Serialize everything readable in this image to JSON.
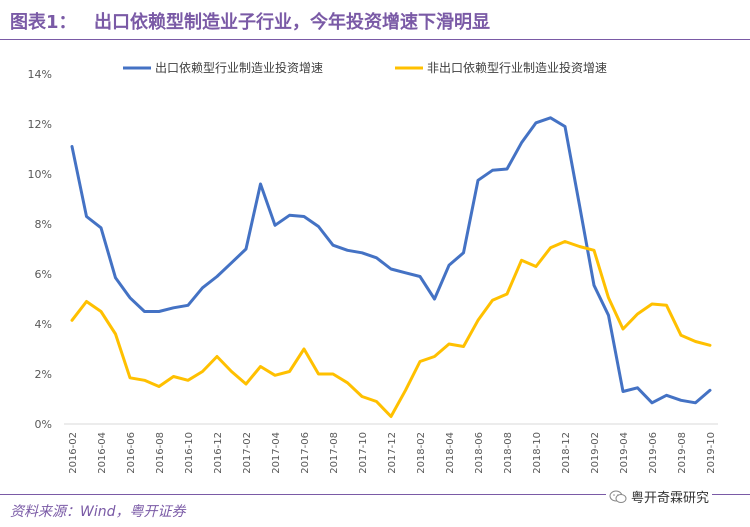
{
  "header": {
    "label": "图表1：",
    "title": "出口依赖型制造业子行业，今年投资增速下滑明显"
  },
  "footer": {
    "source": "资料来源：Wind，粤开证券",
    "brand": "粤开奇霖研究"
  },
  "icons": {
    "brand_icon": "wechat-icon"
  },
  "colors": {
    "accent": "#7a5aa6",
    "series1": "#4472c4",
    "series2": "#ffc000"
  },
  "chart_data": {
    "type": "line",
    "title": "",
    "ylim": [
      0,
      14
    ],
    "yticks": [
      0,
      2,
      4,
      6,
      8,
      10,
      12,
      14
    ],
    "ytick_labels": [
      "0%",
      "2%",
      "4%",
      "6%",
      "8%",
      "10%",
      "12%",
      "14%"
    ],
    "y_unit": "%",
    "grid": false,
    "legend_position": "top",
    "x": [
      "2016-02",
      "2016-03",
      "2016-04",
      "2016-05",
      "2016-06",
      "2016-07",
      "2016-08",
      "2016-09",
      "2016-10",
      "2016-11",
      "2016-12",
      "2017-01",
      "2017-02",
      "2017-03",
      "2017-04",
      "2017-05",
      "2017-06",
      "2017-07",
      "2017-08",
      "2017-09",
      "2017-10",
      "2017-11",
      "2017-12",
      "2018-01",
      "2018-02",
      "2018-03",
      "2018-04",
      "2018-05",
      "2018-06",
      "2018-07",
      "2018-08",
      "2018-09",
      "2018-10",
      "2018-11",
      "2018-12",
      "2019-01",
      "2019-02",
      "2019-03",
      "2019-04",
      "2019-05",
      "2019-06",
      "2019-07",
      "2019-08",
      "2019-09",
      "2019-10"
    ],
    "x_tick_labels": [
      "2016-02",
      "2016-04",
      "2016-06",
      "2016-08",
      "2016-10",
      "2016-12",
      "2017-02",
      "2017-04",
      "2017-06",
      "2017-08",
      "2017-10",
      "2017-12",
      "2018-02",
      "2018-04",
      "2018-06",
      "2018-08",
      "2018-10",
      "2018-12",
      "2019-02",
      "2019-04",
      "2019-06",
      "2019-08",
      "2019-10"
    ],
    "series": [
      {
        "name": "出口依赖型行业制造业投资增速",
        "values": [
          11.1,
          8.3,
          7.85,
          5.85,
          5.05,
          4.5,
          4.5,
          4.65,
          4.75,
          5.45,
          5.9,
          6.45,
          7.0,
          9.6,
          7.95,
          8.35,
          8.3,
          7.9,
          7.15,
          6.95,
          6.85,
          6.65,
          6.2,
          6.05,
          5.9,
          5.0,
          6.35,
          6.85,
          9.75,
          10.15,
          10.2,
          11.25,
          12.05,
          12.25,
          11.9,
          8.75,
          5.55,
          4.35,
          1.3,
          1.45,
          0.85,
          1.15,
          0.95,
          0.85,
          1.35
        ]
      },
      {
        "name": "非出口依赖型行业制造业投资增速",
        "values": [
          4.15,
          4.9,
          4.5,
          3.6,
          1.85,
          1.75,
          1.5,
          1.9,
          1.75,
          2.1,
          2.7,
          2.1,
          1.6,
          2.3,
          1.95,
          2.1,
          3.0,
          2.0,
          2.0,
          1.65,
          1.1,
          0.9,
          0.3,
          1.35,
          2.5,
          2.7,
          3.2,
          3.1,
          4.15,
          4.95,
          5.2,
          6.55,
          6.3,
          7.05,
          7.3,
          7.1,
          6.95,
          5.05,
          3.8,
          4.4,
          4.8,
          4.75,
          3.55,
          3.3,
          3.15
        ]
      }
    ]
  }
}
